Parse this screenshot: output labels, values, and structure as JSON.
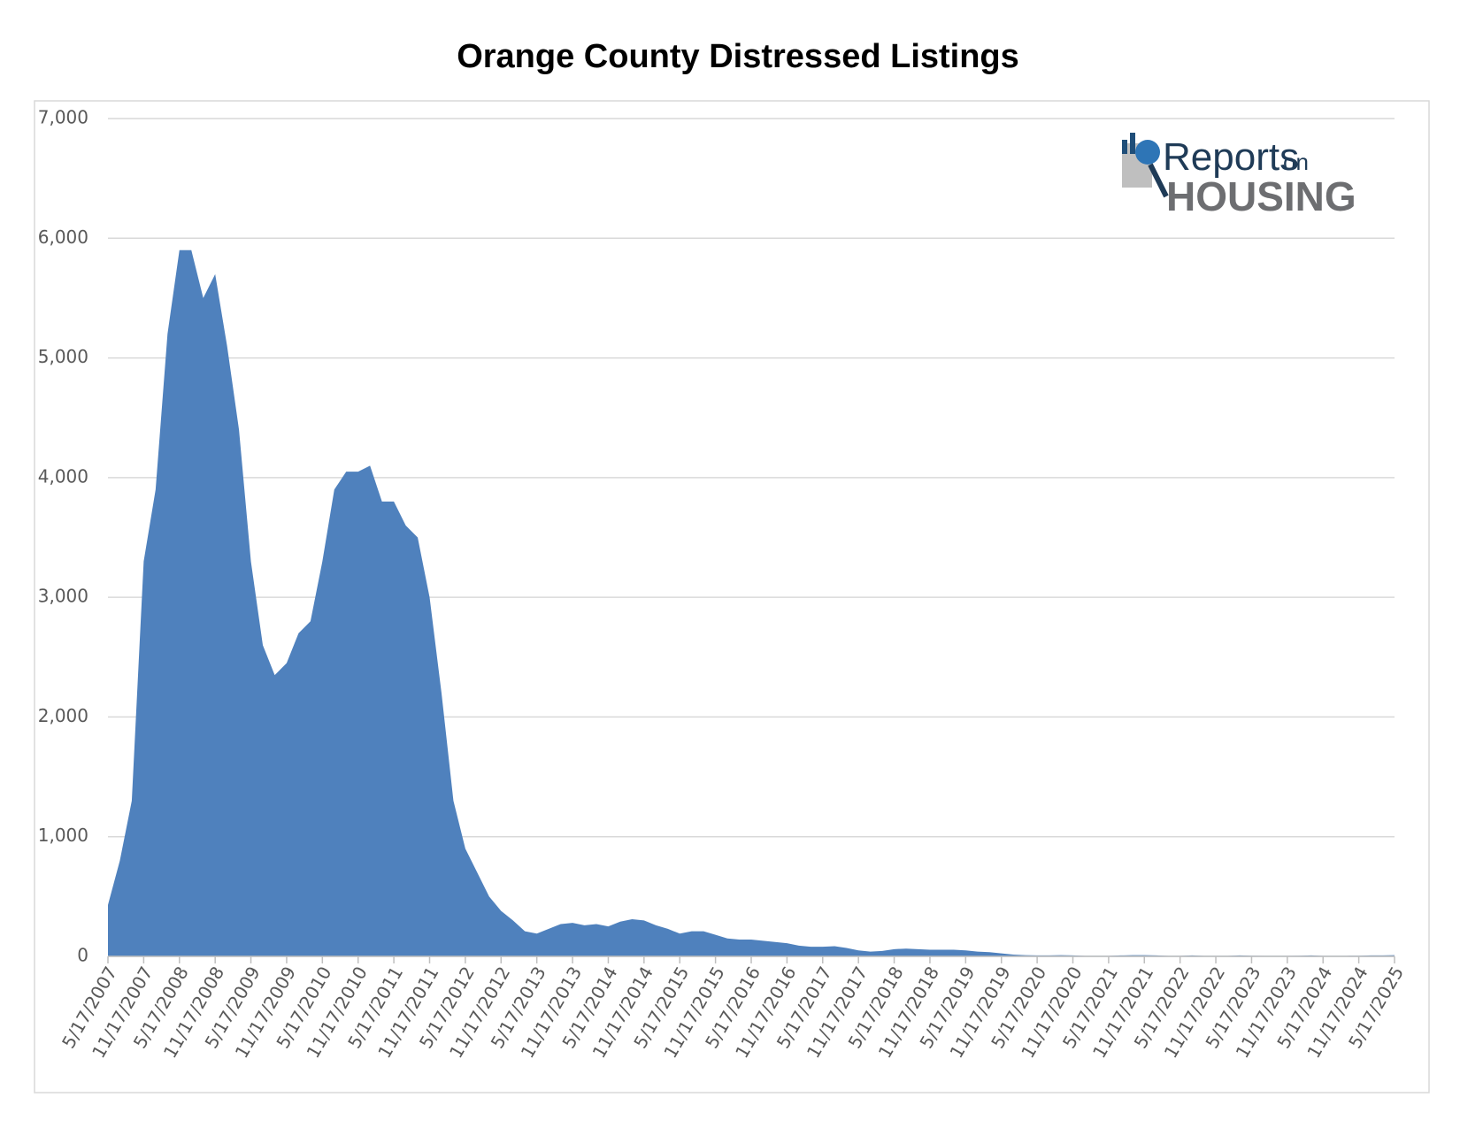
{
  "chart_data": {
    "type": "area",
    "title": "Orange County Distressed Listings",
    "logo": {
      "line1": "Reports",
      "line1b": "on",
      "line2": "HOUSING"
    },
    "color": "#4f81bd",
    "categories": [
      "5/17/2007",
      null,
      null,
      "11/17/2007",
      null,
      null,
      "5/17/2008",
      null,
      null,
      "11/17/2008",
      null,
      null,
      "5/17/2009",
      null,
      null,
      "11/17/2009",
      null,
      null,
      "5/17/2010",
      null,
      null,
      "11/17/2010",
      null,
      null,
      "5/17/2011",
      null,
      null,
      "11/17/2011",
      null,
      null,
      "5/17/2012",
      null,
      null,
      "11/17/2012",
      null,
      null,
      "5/17/2013",
      null,
      null,
      "11/17/2013",
      null,
      null,
      "5/17/2014",
      null,
      null,
      "11/17/2014",
      null,
      null,
      "5/17/2015",
      null,
      null,
      "11/17/2015",
      null,
      null,
      "5/17/2016",
      null,
      null,
      "11/17/2016",
      null,
      null,
      "5/17/2017",
      null,
      null,
      "11/17/2017",
      null,
      null,
      "5/17/2018",
      null,
      null,
      "11/17/2018",
      null,
      null,
      "5/17/2019",
      null,
      null,
      "11/17/2019",
      null,
      null,
      "5/17/2020",
      null,
      null,
      "11/17/2020",
      null,
      null,
      "5/17/2021",
      null,
      null,
      "11/17/2021",
      null,
      null,
      "5/17/2022",
      null,
      null,
      "11/17/2022",
      null,
      null,
      "5/17/2023",
      null,
      null,
      "11/17/2023",
      null,
      null,
      "5/17/2024",
      null,
      null,
      "11/17/2024",
      null,
      null,
      "5/17/2025"
    ],
    "values": [
      430,
      800,
      1300,
      3300,
      3900,
      5200,
      5900,
      5900,
      5500,
      5700,
      5100,
      4400,
      3300,
      2600,
      2350,
      2450,
      2700,
      2800,
      3300,
      3900,
      4050,
      4050,
      4100,
      3800,
      3800,
      3600,
      3500,
      3000,
      2200,
      1300,
      900,
      700,
      500,
      380,
      300,
      210,
      190,
      230,
      270,
      280,
      260,
      270,
      250,
      290,
      310,
      300,
      260,
      230,
      190,
      210,
      210,
      180,
      150,
      140,
      140,
      130,
      120,
      110,
      90,
      80,
      80,
      85,
      70,
      50,
      40,
      45,
      60,
      65,
      60,
      55,
      55,
      55,
      50,
      40,
      35,
      25,
      15,
      10,
      8,
      8,
      10,
      8,
      5,
      5,
      5,
      8,
      10,
      10,
      8,
      5,
      5,
      8,
      5,
      5,
      5,
      8,
      6,
      5,
      5,
      5,
      6,
      8,
      5,
      5,
      5,
      6,
      8,
      8,
      10
    ],
    "ylim": [
      0,
      7000
    ],
    "yticks": [
      0,
      {
        "value": 1000,
        "label": "1,000"
      },
      {
        "value": 2000,
        "label": "2,000"
      },
      {
        "value": 3000,
        "label": "3,000"
      },
      {
        "value": 4000,
        "label": "4,000"
      },
      {
        "value": 5000,
        "label": "5,000"
      },
      {
        "value": 6000,
        "label": "6,000"
      },
      {
        "value": 7000,
        "label": "7,000"
      }
    ],
    "grid": true
  }
}
